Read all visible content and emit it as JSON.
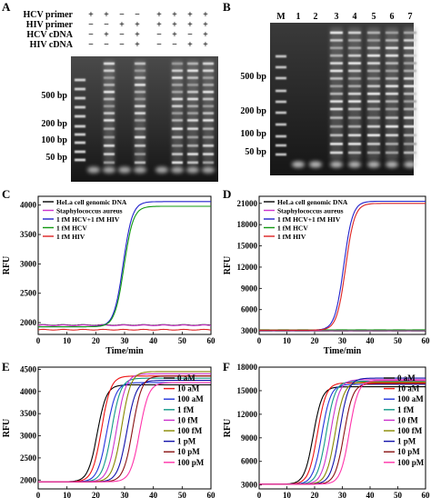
{
  "panels": {
    "A": {
      "label": "A",
      "rows": [
        {
          "name": "HCV primer",
          "signs": [
            "+",
            "+",
            "−",
            "−",
            "+",
            "+",
            "+",
            "+"
          ]
        },
        {
          "name": "HIV primer",
          "signs": [
            "−",
            "−",
            "+",
            "+",
            "+",
            "+",
            "+",
            "+"
          ]
        },
        {
          "name": "HCV cDNA",
          "signs": [
            "−",
            "+",
            "−",
            "+",
            "−",
            "+",
            "−",
            "+"
          ]
        },
        {
          "name": "HIV cDNA",
          "signs": [
            "−",
            "−",
            "−",
            "+",
            "−",
            "−",
            "+",
            "+"
          ]
        }
      ],
      "size_labels": [
        "500 bp",
        "200 bp",
        "100 bp",
        "50 bp"
      ]
    },
    "B": {
      "label": "B",
      "lanes": [
        "M",
        "1",
        "2",
        "3",
        "4",
        "5",
        "6",
        "7"
      ],
      "size_labels": [
        "500 bp",
        "200 bp",
        "100 bp",
        "50 bp"
      ]
    }
  },
  "chart_data": [
    {
      "panel": "C",
      "type": "line",
      "xlabel": "Time/min",
      "ylabel": "RFU",
      "xlim": [
        0,
        60
      ],
      "ylim": [
        1800,
        4150
      ],
      "xticks": [
        0,
        10,
        20,
        30,
        40,
        50,
        60
      ],
      "yticks": [
        2000,
        2500,
        3000,
        3500,
        4000
      ],
      "legend": "top-left",
      "series": [
        {
          "name": "HeLa cell genomic DNA",
          "color": "#000000",
          "base": 1960,
          "plateau": 1960,
          "midpoint": null
        },
        {
          "name": "Staphylococcus aureus",
          "color": "#cc33cc",
          "base": 1955,
          "plateau": 1955,
          "midpoint": null
        },
        {
          "name": "1 fM HCV+1 fM HIV",
          "color": "#2222cc",
          "base": 1930,
          "plateau": 4060,
          "midpoint": 29.5
        },
        {
          "name": "1 fM HCV",
          "color": "#119911",
          "base": 1930,
          "plateau": 3980,
          "midpoint": 29.8
        },
        {
          "name": "1 fM HIV",
          "color": "#dd2222",
          "base": 1880,
          "plateau": 1880,
          "midpoint": null
        }
      ]
    },
    {
      "panel": "D",
      "type": "line",
      "xlabel": "Time/min",
      "ylabel": "RFU",
      "xlim": [
        0,
        60
      ],
      "ylim": [
        2500,
        22000
      ],
      "xticks": [
        0,
        10,
        20,
        30,
        40,
        50,
        60
      ],
      "yticks": [
        3000,
        6000,
        9000,
        12000,
        15000,
        18000,
        21000
      ],
      "legend": "top-left",
      "series": [
        {
          "name": "HeLa cell genomic DNA",
          "color": "#000000",
          "base": 3000,
          "plateau": 3000,
          "midpoint": null
        },
        {
          "name": "Staphylococcus aureus",
          "color": "#cc33cc",
          "base": 3050,
          "plateau": 3050,
          "midpoint": null
        },
        {
          "name": "1 fM HCV+1 fM HIV",
          "color": "#2222cc",
          "base": 3100,
          "plateau": 21300,
          "midpoint": 30.5
        },
        {
          "name": "1 fM HCV",
          "color": "#119911",
          "base": 3150,
          "plateau": 3150,
          "midpoint": null
        },
        {
          "name": "1 fM HIV",
          "color": "#dd2222",
          "base": 3100,
          "plateau": 21000,
          "midpoint": 31.2
        }
      ]
    },
    {
      "panel": "E",
      "type": "line",
      "xlabel": "Time/min",
      "ylabel": "RFU",
      "xlim": [
        0,
        60
      ],
      "ylim": [
        1800,
        4550
      ],
      "xticks": [
        0,
        10,
        20,
        30,
        40,
        50,
        60
      ],
      "yticks": [
        2000,
        2500,
        3000,
        3500,
        4000,
        4500
      ],
      "legend": "right",
      "series": [
        {
          "name": "0 aM",
          "color": "#000000",
          "base": 1960,
          "plateau": 4150,
          "midpoint": 20.5
        },
        {
          "name": "10 aM",
          "color": "#ee1111",
          "base": 1960,
          "plateau": 4350,
          "midpoint": 22.0
        },
        {
          "name": "100 aM",
          "color": "#2233dd",
          "base": 1960,
          "plateau": 4200,
          "midpoint": 23.8
        },
        {
          "name": "1 fM",
          "color": "#119988",
          "base": 1960,
          "plateau": 4300,
          "midpoint": 25.5
        },
        {
          "name": "10 fM",
          "color": "#cc33cc",
          "base": 1960,
          "plateau": 4400,
          "midpoint": 27.3
        },
        {
          "name": "100 fM",
          "color": "#888800",
          "base": 1960,
          "plateau": 4450,
          "midpoint": 29.0
        },
        {
          "name": "1 pM",
          "color": "#1111aa",
          "base": 1960,
          "plateau": 4250,
          "midpoint": 30.8
        },
        {
          "name": "10 pM",
          "color": "#881111",
          "base": 1960,
          "plateau": 4350,
          "midpoint": 32.8
        },
        {
          "name": "100 pM",
          "color": "#ff33aa",
          "base": 1960,
          "plateau": 4200,
          "midpoint": 35.2
        }
      ]
    },
    {
      "panel": "F",
      "type": "line",
      "xlabel": "Time/min",
      "ylabel": "RFU",
      "xlim": [
        0,
        60
      ],
      "ylim": [
        2500,
        18000
      ],
      "xticks": [
        0,
        10,
        20,
        30,
        40,
        50,
        60
      ],
      "yticks": [
        3000,
        6000,
        9000,
        12000,
        15000,
        18000
      ],
      "legend": "right",
      "series": [
        {
          "name": "0 aM",
          "color": "#000000",
          "base": 3100,
          "plateau": 15500,
          "midpoint": 19.5
        },
        {
          "name": "10 aM",
          "color": "#ee1111",
          "base": 3100,
          "plateau": 16000,
          "midpoint": 21.0
        },
        {
          "name": "100 aM",
          "color": "#2233dd",
          "base": 3100,
          "plateau": 15800,
          "midpoint": 22.6
        },
        {
          "name": "1 fM",
          "color": "#119988",
          "base": 3100,
          "plateau": 16200,
          "midpoint": 24.2
        },
        {
          "name": "10 fM",
          "color": "#cc33cc",
          "base": 3100,
          "plateau": 16400,
          "midpoint": 25.8
        },
        {
          "name": "100 fM",
          "color": "#888800",
          "base": 3100,
          "plateau": 16100,
          "midpoint": 27.4
        },
        {
          "name": "1 pM",
          "color": "#1111aa",
          "base": 3100,
          "plateau": 16600,
          "midpoint": 29.0
        },
        {
          "name": "10 pM",
          "color": "#881111",
          "base": 3100,
          "plateau": 15900,
          "midpoint": 30.6
        },
        {
          "name": "100 pM",
          "color": "#ff33aa",
          "base": 3100,
          "plateau": 16300,
          "midpoint": 32.5
        }
      ]
    }
  ]
}
